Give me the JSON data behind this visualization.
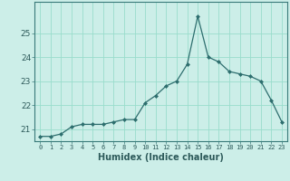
{
  "x": [
    0,
    1,
    2,
    3,
    4,
    5,
    6,
    7,
    8,
    9,
    10,
    11,
    12,
    13,
    14,
    15,
    16,
    17,
    18,
    19,
    20,
    21,
    22,
    23
  ],
  "y": [
    20.7,
    20.7,
    20.8,
    21.1,
    21.2,
    21.2,
    21.2,
    21.3,
    21.4,
    21.4,
    22.1,
    22.4,
    22.8,
    23.0,
    23.7,
    25.7,
    24.0,
    23.8,
    23.4,
    23.3,
    23.2,
    23.0,
    22.2,
    21.3
  ],
  "xlabel": "Humidex (Indice chaleur)",
  "ylim": [
    20.5,
    26.3
  ],
  "xlim": [
    -0.5,
    23.5
  ],
  "line_color": "#2d6e6e",
  "marker_color": "#2d6e6e",
  "bg_color": "#cceee8",
  "grid_color": "#99ddcc",
  "tick_labels": [
    "0",
    "1",
    "2",
    "3",
    "4",
    "5",
    "6",
    "7",
    "8",
    "9",
    "10",
    "11",
    "12",
    "13",
    "14",
    "15",
    "16",
    "17",
    "18",
    "19",
    "20",
    "21",
    "22",
    "23"
  ],
  "yticks": [
    21,
    22,
    23,
    24,
    25
  ]
}
